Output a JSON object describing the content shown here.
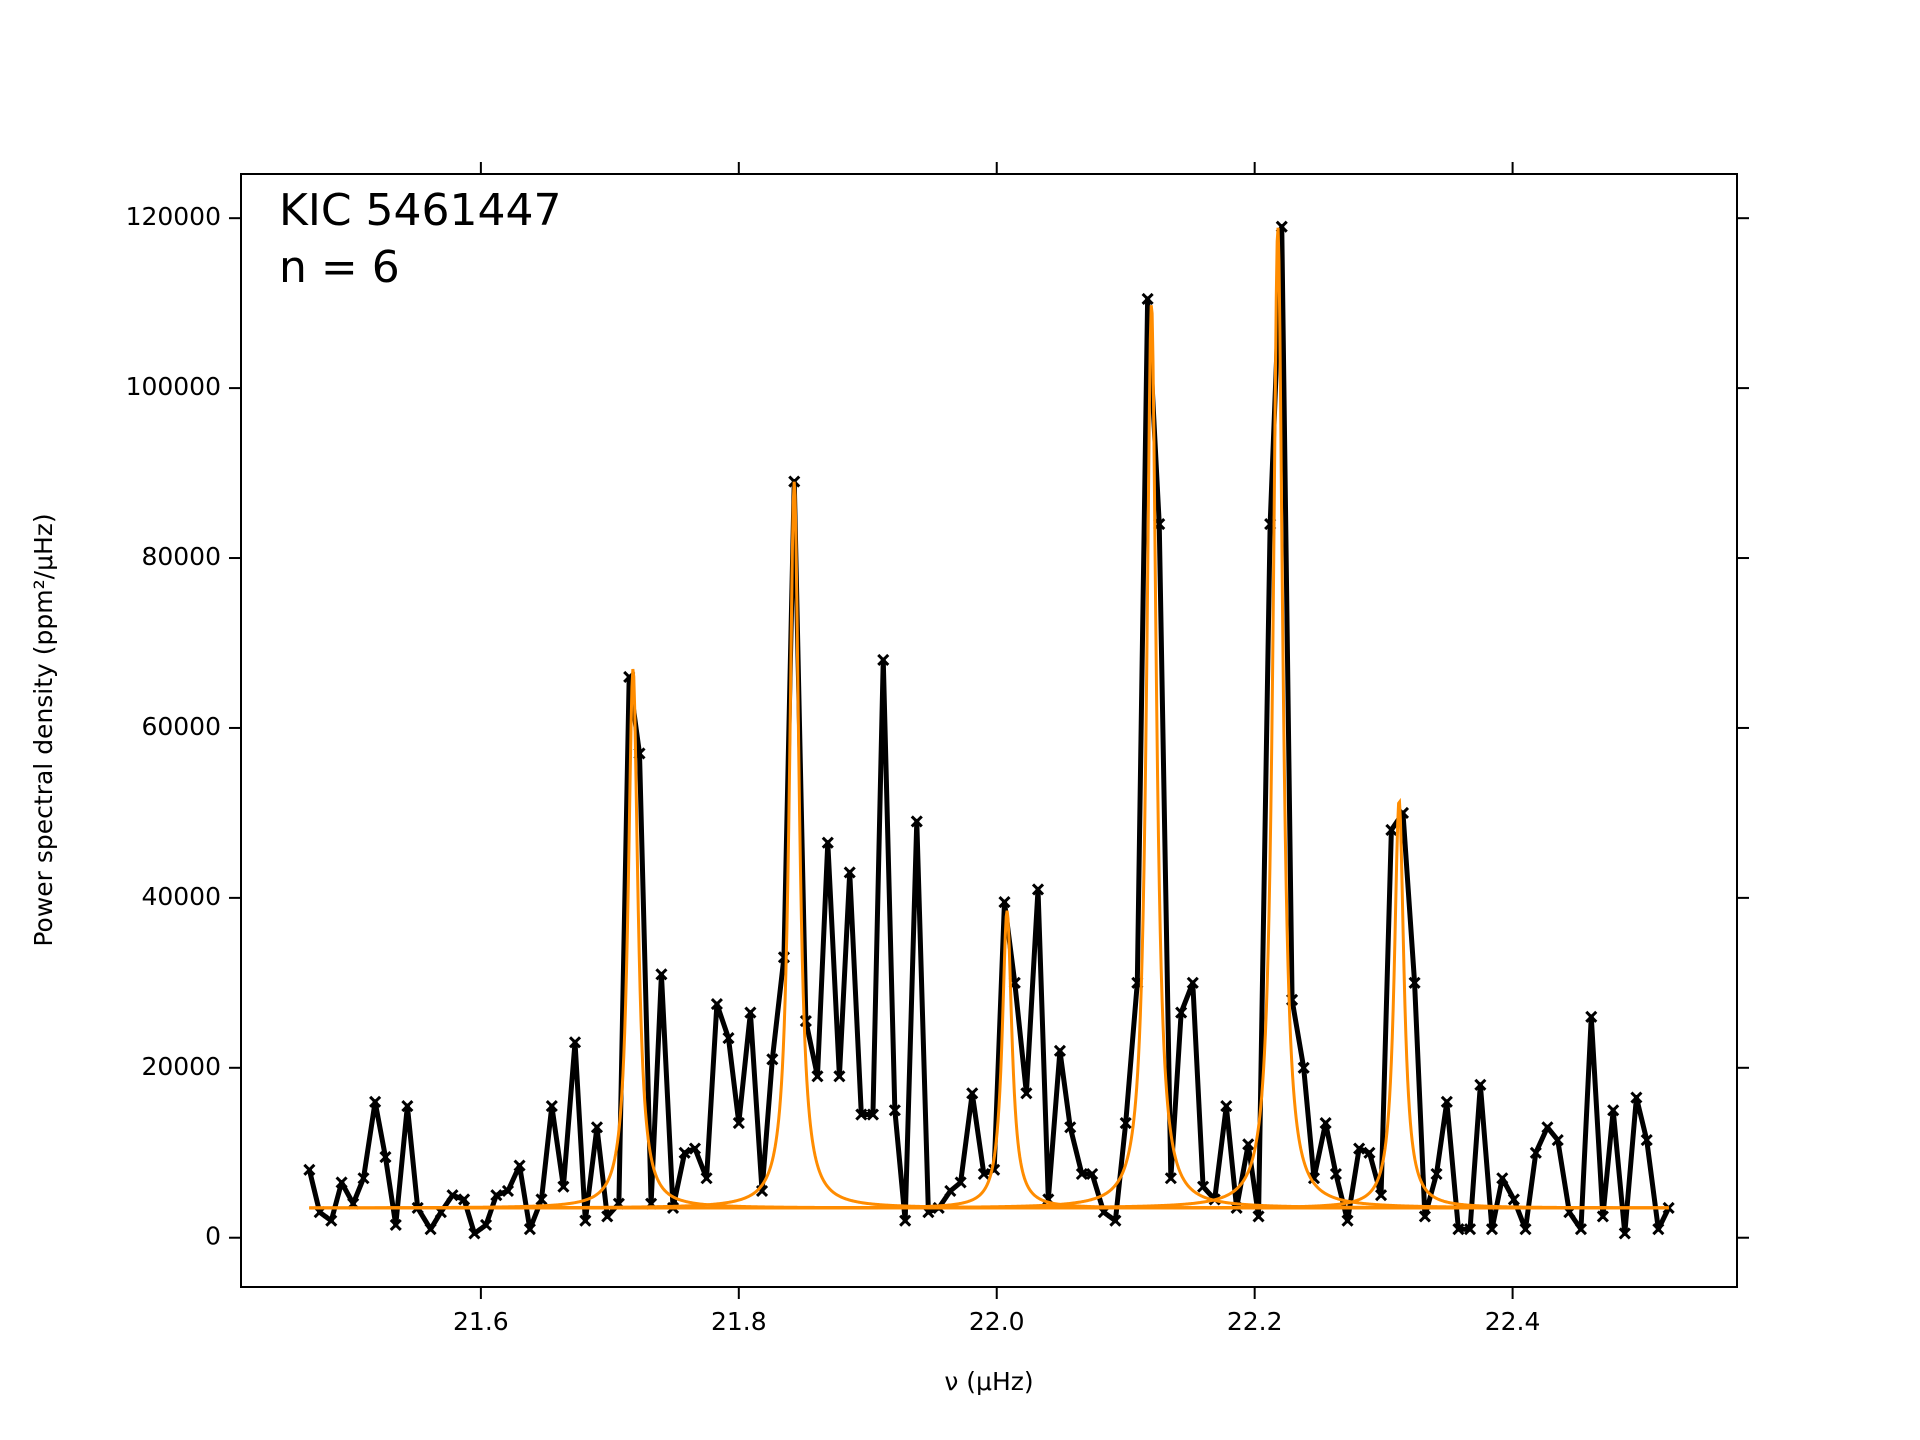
{
  "chart_data": {
    "type": "line",
    "annotations": [
      "KIC 5461447",
      "n = 6"
    ],
    "xlabel": "ν (μHz)",
    "ylabel": "Power spectral density (ppm²/μHz)",
    "xlim": [
      21.414,
      22.574
    ],
    "ylim": [
      -5800,
      125200
    ],
    "xticks": [
      21.6,
      21.8,
      {
        "value": 22,
        "label": "22.0"
      },
      22.2,
      22.4
    ],
    "yticks": [
      0,
      20000,
      40000,
      60000,
      80000,
      100000,
      120000
    ],
    "series": [
      {
        "color": "#000000",
        "x": [
          21.467,
          21.475,
          21.484,
          21.492,
          21.501,
          21.509,
          21.518,
          21.526,
          21.534,
          21.543,
          21.551,
          21.561,
          21.569,
          21.578,
          21.587,
          21.595,
          21.604,
          21.612,
          21.621,
          21.63,
          21.638,
          21.647,
          21.655,
          21.664,
          21.673,
          21.681,
          21.69,
          21.698,
          21.707,
          21.715,
          21.723,
          21.732,
          21.74,
          21.749,
          21.758,
          21.766,
          21.775,
          21.783,
          21.792,
          21.8,
          21.809,
          21.818,
          21.826,
          21.835,
          21.843,
          21.852,
          21.861,
          21.869,
          21.878,
          21.886,
          21.895,
          21.904,
          21.912,
          21.921,
          21.929,
          21.938,
          21.947,
          21.955,
          21.964,
          21.972,
          21.981,
          21.99,
          21.998,
          22.006,
          22.014,
          22.023,
          22.032,
          22.04,
          22.049,
          22.057,
          22.066,
          22.074,
          22.083,
          22.092,
          22.1,
          22.109,
          22.117,
          22.126,
          22.135,
          22.143,
          22.152,
          22.16,
          22.169,
          22.178,
          22.186,
          22.195,
          22.203,
          22.212,
          22.221,
          22.229,
          22.238,
          22.246,
          22.255,
          22.263,
          22.272,
          22.281,
          22.289,
          22.298,
          22.306,
          22.315,
          22.324,
          22.332,
          22.341,
          22.349,
          22.358,
          22.367,
          22.375,
          22.384,
          22.392,
          22.401,
          22.41,
          22.418,
          22.427,
          22.435,
          22.444,
          22.453,
          22.461,
          22.47,
          22.478,
          22.487,
          22.496,
          22.504,
          22.513,
          22.521
        ],
        "values": [
          8000,
          3000,
          2000,
          6500,
          4000,
          7000,
          16000,
          9500,
          1500,
          15500,
          3500,
          1000,
          3000,
          5000,
          4500,
          500,
          1500,
          5000,
          5500,
          8500,
          1000,
          4500,
          15500,
          6000,
          23000,
          2000,
          13000,
          2500,
          4000,
          66000,
          57000,
          4000,
          31000,
          3500,
          10000,
          10500,
          7000,
          27500,
          23500,
          13500,
          26500,
          5500,
          21000,
          33000,
          89000,
          25500,
          19000,
          46500,
          19000,
          43000,
          14500,
          14500,
          68000,
          15000,
          2000,
          49000,
          3000,
          3500,
          5500,
          6500,
          17000,
          7500,
          8000,
          39500,
          30000,
          17000,
          41000,
          4500,
          22000,
          13000,
          7500,
          7500,
          3000,
          2000,
          13500,
          30000,
          110500,
          84000,
          7000,
          26500,
          30000,
          6000,
          4500,
          15500,
          3500,
          11000,
          2500,
          84000,
          119000,
          28000,
          20000,
          7000,
          13500,
          7500,
          2000,
          10500,
          10000,
          5000,
          48000,
          50000,
          30000,
          2500,
          7500,
          16000,
          1000,
          1000,
          18000,
          1000,
          7000,
          4500,
          1000,
          10000,
          13000,
          11500,
          3000,
          1000,
          26000,
          2500,
          15000,
          500,
          16500,
          11500,
          1000,
          3500
        ]
      }
    ],
    "fit": {
      "color": "#ff8c00",
      "background": 3500,
      "peaks": [
        {
          "center": 21.718,
          "height": 63500,
          "width": 0.0045
        },
        {
          "center": 21.843,
          "height": 85500,
          "width": 0.0045
        },
        {
          "center": 22.008,
          "height": 35000,
          "width": 0.0045
        },
        {
          "center": 22.12,
          "height": 106500,
          "width": 0.0045
        },
        {
          "center": 22.218,
          "height": 115500,
          "width": 0.0045
        },
        {
          "center": 22.312,
          "height": 48000,
          "width": 0.0045
        }
      ]
    }
  }
}
